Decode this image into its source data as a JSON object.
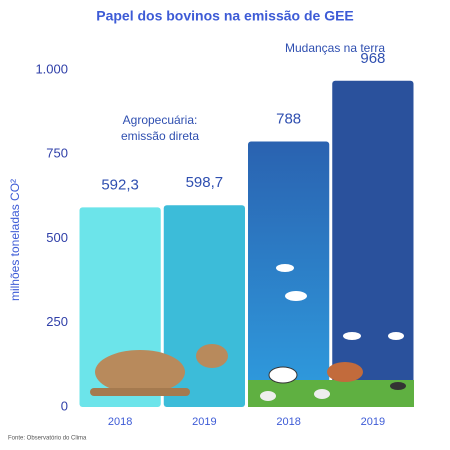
{
  "chart_data": {
    "type": "bar",
    "title": "Papel dos bovinos na emissão de GEE",
    "y_label": "milhões toneladas CO²",
    "categories": [
      "2018",
      "2019",
      "2018",
      "2019"
    ],
    "values": [
      592.3,
      598.7,
      788,
      968
    ],
    "value_labels": [
      "592,3",
      "598,7",
      "788",
      "968"
    ],
    "colors": [
      "#6ce4ea",
      "#3cbcd9",
      "#2a83cc",
      "#2a519c"
    ],
    "ylim": [
      0,
      1000
    ],
    "yticks": [
      0,
      250,
      500,
      750,
      {
        "value": 1000,
        "label": "1.000"
      }
    ],
    "annotations": [
      [
        "Agropecuária:",
        "emissão direta"
      ],
      [
        "Mudanças na terra"
      ]
    ],
    "source": "Fonte: Observatório do Clima"
  }
}
